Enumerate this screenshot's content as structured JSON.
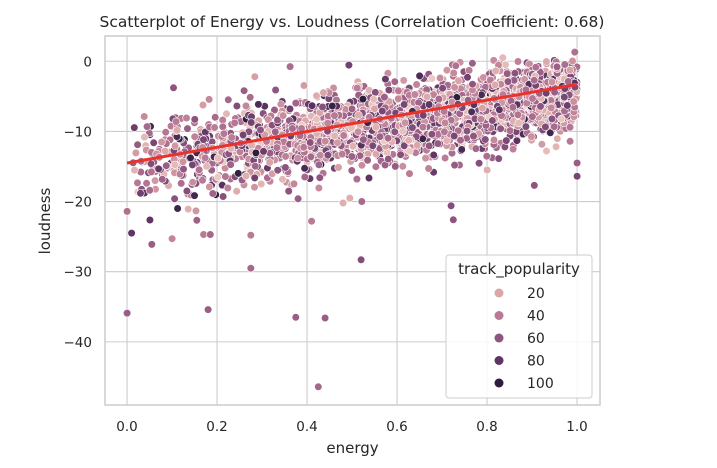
{
  "chart_data": {
    "type": "scatter",
    "title": "Scatterplot of Energy vs. Loudness (Correlation Coefficient: 0.68)",
    "xlabel": "energy",
    "ylabel": "loudness",
    "xlim": [
      -0.049,
      1.051
    ],
    "ylim": [
      -49.0,
      3.6
    ],
    "xticks": [
      0.0,
      0.2,
      0.4,
      0.6,
      0.8,
      1.0
    ],
    "xtick_labels": [
      "0.0",
      "0.2",
      "0.4",
      "0.6",
      "0.8",
      "1.0"
    ],
    "yticks": [
      0,
      -10,
      -20,
      -30,
      -40
    ],
    "ytick_labels": [
      "0",
      "−10",
      "−20",
      "−30",
      "−40"
    ],
    "grid": true,
    "hue": "track_popularity",
    "legend": {
      "title": "track_popularity",
      "placement": "lower-right",
      "entries": [
        {
          "label": "20",
          "color": "#dba6a8"
        },
        {
          "label": "40",
          "color": "#b97a95"
        },
        {
          "label": "60",
          "color": "#8e5580"
        },
        {
          "label": "80",
          "color": "#5e3563"
        },
        {
          "label": "100",
          "color": "#2d1e3e"
        }
      ]
    },
    "hue_palette": [
      "#ecc9c3",
      "#dba6a8",
      "#b97a95",
      "#8e5580",
      "#5e3563",
      "#2d1e3e"
    ],
    "regression_line": {
      "color": "#e8322a",
      "points": [
        [
          0.0,
          -14.5
        ],
        [
          1.0,
          -3.3
        ]
      ]
    },
    "bulk_cloud": {
      "description": "dense band of several thousand points, roughly linear trend",
      "x_range": [
        0.0,
        1.0
      ],
      "center_at_x0": -15.0,
      "center_at_x1": -4.5,
      "spread_sd": 3.2,
      "n_points": 2600,
      "popularity_range": [
        0,
        100
      ]
    },
    "outliers": [
      {
        "x": 0.0,
        "y": -35.9,
        "popularity": 55
      },
      {
        "x": 0.18,
        "y": -35.4,
        "popularity": 55
      },
      {
        "x": 0.275,
        "y": -29.5,
        "popularity": 50
      },
      {
        "x": 0.375,
        "y": -36.5,
        "popularity": 55
      },
      {
        "x": 0.44,
        "y": -36.6,
        "popularity": 55
      },
      {
        "x": 0.425,
        "y": -46.4,
        "popularity": 50
      },
      {
        "x": 0.52,
        "y": -28.3,
        "popularity": 65
      },
      {
        "x": 0.72,
        "y": -20.6,
        "popularity": 65
      },
      {
        "x": 0.725,
        "y": -22.6,
        "popularity": 60
      },
      {
        "x": 0.905,
        "y": -17.7,
        "popularity": 60
      },
      {
        "x": 1.0,
        "y": -16.4,
        "popularity": 70
      },
      {
        "x": 1.0,
        "y": -14.5,
        "popularity": 55
      },
      {
        "x": 0.0,
        "y": -21.4,
        "popularity": 45
      },
      {
        "x": 0.01,
        "y": -24.5,
        "popularity": 80
      },
      {
        "x": 0.055,
        "y": -26.1,
        "popularity": 55
      },
      {
        "x": 0.1,
        "y": -25.3,
        "popularity": 35
      },
      {
        "x": 0.17,
        "y": -24.7,
        "popularity": 40
      },
      {
        "x": 0.185,
        "y": -24.7,
        "popularity": 50
      },
      {
        "x": 0.275,
        "y": -24.8,
        "popularity": 40
      },
      {
        "x": 0.41,
        "y": -22.8,
        "popularity": 40
      },
      {
        "x": 0.48,
        "y": -20.2,
        "popularity": 15
      },
      {
        "x": 0.495,
        "y": -19.5,
        "popularity": 15
      },
      {
        "x": 0.38,
        "y": -19.6,
        "popularity": 55
      },
      {
        "x": 0.8,
        "y": -15.5,
        "popularity": 15
      },
      {
        "x": 0.995,
        "y": 1.3,
        "popularity": 45
      },
      {
        "x": 0.835,
        "y": 0.5,
        "popularity": 10
      },
      {
        "x": 0.26,
        "y": -4.2,
        "popularity": 55
      },
      {
        "x": 0.225,
        "y": -5.5,
        "popularity": 50
      },
      {
        "x": 0.33,
        "y": -4.1,
        "popularity": 60
      }
    ]
  }
}
